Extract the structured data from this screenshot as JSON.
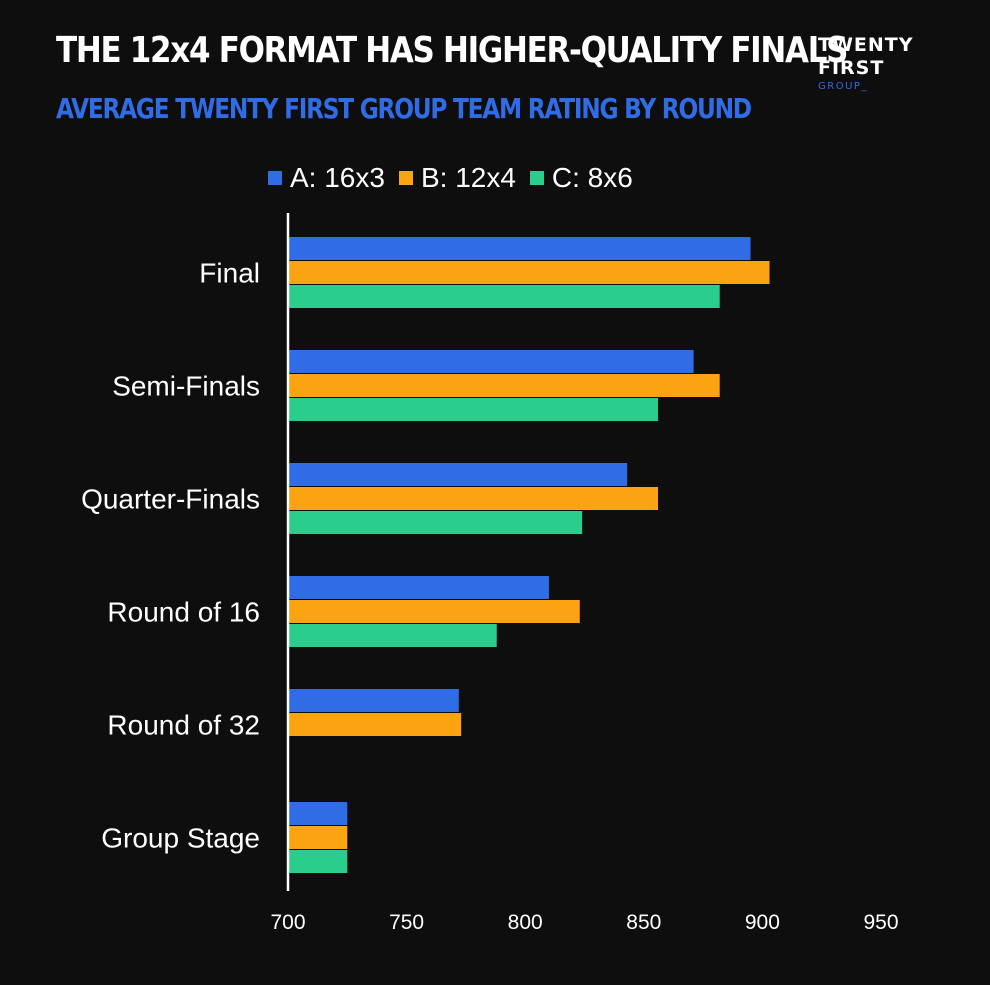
{
  "header": {
    "title": "THE 12x4 FORMAT HAS HIGHER-QUALITY FINALS",
    "subtitle": "AVERAGE TWENTY FIRST GROUP TEAM RATING BY ROUND"
  },
  "logo": {
    "line1": "TWENTY",
    "line2": "FIRST",
    "line3": "GROUP_"
  },
  "chart_data": {
    "type": "bar",
    "orientation": "horizontal",
    "title": "THE 12x4 FORMAT HAS HIGHER-QUALITY FINALS",
    "subtitle": "AVERAGE TWENTY FIRST GROUP TEAM RATING BY ROUND",
    "xlabel": "",
    "ylabel": "",
    "categories": [
      "Final",
      "Semi-Finals",
      "Quarter-Finals",
      "Round of 16",
      "Round of 32",
      "Group Stage"
    ],
    "series": [
      {
        "name": "A: 16x3",
        "color": "#2f6ce5",
        "values": [
          895,
          871,
          843,
          810,
          772,
          725
        ]
      },
      {
        "name": "B: 12x4",
        "color": "#fca311",
        "values": [
          903,
          882,
          856,
          823,
          773,
          725
        ]
      },
      {
        "name": "C: 8x6",
        "color": "#2acd8b",
        "values": [
          882,
          856,
          824,
          788,
          null,
          725
        ]
      }
    ],
    "xlim": [
      700,
      950
    ],
    "xticks": [
      "700",
      "750",
      "800",
      "850",
      "900",
      "950"
    ],
    "grid": false,
    "legend_position": "top"
  }
}
